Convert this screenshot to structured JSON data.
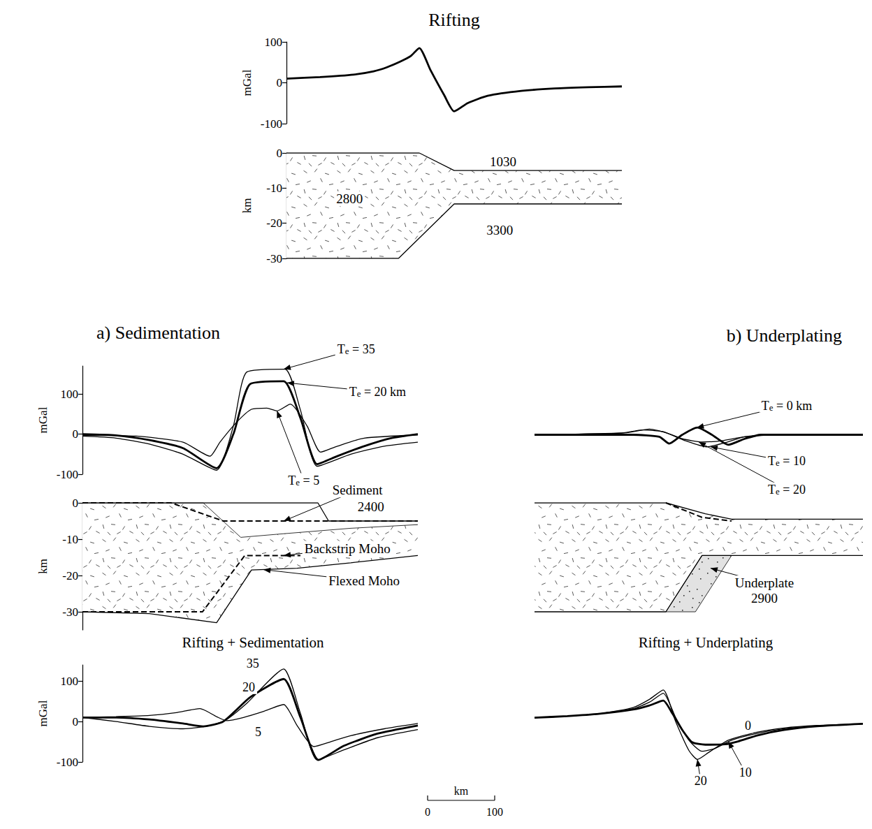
{
  "chart_data": [
    {
      "type": "line",
      "title": "Rifting",
      "y_label": "mGal",
      "color": "#000000",
      "grid": false,
      "xlim": [
        0,
        500
      ],
      "ylim": [
        -100,
        100
      ],
      "yticks": [
        -100,
        0,
        100
      ],
      "tick_labels": "y",
      "series": [
        {
          "line_style": "bold",
          "x": [
            0,
            50,
            100,
            130,
            150,
            170,
            185,
            198,
            215,
            235,
            250,
            270,
            300,
            350,
            400,
            450,
            500
          ],
          "values": [
            10,
            14,
            20,
            28,
            38,
            52,
            65,
            85,
            30,
            -30,
            -70,
            -50,
            -32,
            -20,
            -14,
            -11,
            -9
          ]
        }
      ]
    },
    {
      "type": "section",
      "y_label": "km",
      "color": "#000000",
      "grid": false,
      "xlim": [
        0,
        500
      ],
      "ylim": [
        -30,
        0
      ],
      "yticks": [
        0,
        -10,
        -20,
        -30
      ],
      "tick_labels": "y",
      "layers": [
        {
          "fill": "crust",
          "top": {
            "x": [
              0,
              198,
              250,
              500
            ],
            "values": [
              0,
              0,
              -5,
              -5
            ],
            "line_style": "solid"
          },
          "base": {
            "x": [
              0,
              167,
              250,
              500
            ],
            "values": [
              -30,
              -30,
              -14.5,
              -14.5
            ],
            "line_style": "solid"
          }
        }
      ],
      "lines": [],
      "labels": [
        {
          "text": "2800",
          "x": 94,
          "y": -13
        },
        {
          "text": "1030",
          "x": 323,
          "y": -2.5
        },
        {
          "text": "3300",
          "x": 318,
          "y": -22
        }
      ]
    },
    {
      "type": "line",
      "title": "a) Sedimentation",
      "y_label": "mGal",
      "color": "#000000",
      "grid": false,
      "xlim": [
        0,
        500
      ],
      "ylim": [
        -100,
        170
      ],
      "yticks": [
        -100,
        0,
        100
      ],
      "tick_labels": "y",
      "series": [
        {
          "name": "Te = 35",
          "line_style": "solid",
          "label_at": [
            408,
            212
          ],
          "arrow_to": [
            300,
            162
          ],
          "x": [
            0,
            50,
            100,
            150,
            200,
            225,
            245,
            302,
            325,
            350,
            400,
            450,
            500
          ],
          "values": [
            -5,
            -10,
            -25,
            -50,
            -90,
            20,
            155,
            162,
            60,
            -80,
            -50,
            -30,
            -20
          ]
        },
        {
          "name": "Te = 20 km",
          "line_style": "bold",
          "label_at": [
            440,
            105
          ],
          "arrow_to": [
            305,
            128
          ],
          "x": [
            0,
            50,
            100,
            150,
            200,
            225,
            250,
            300,
            325,
            350,
            380,
            420,
            460,
            500
          ],
          "values": [
            0,
            -3,
            -15,
            -35,
            -85,
            0,
            125,
            132,
            40,
            -75,
            -55,
            -30,
            -10,
            0
          ]
        },
        {
          "name": "Te = 5",
          "line_style": "solid",
          "label_at": [
            330,
            -115
          ],
          "arrow_to": [
            290,
            58
          ],
          "x": [
            0,
            80,
            150,
            190,
            205,
            230,
            252,
            275,
            290,
            310,
            335,
            355,
            380,
            420,
            500
          ],
          "values": [
            -3,
            -5,
            -20,
            -55,
            -20,
            30,
            62,
            65,
            58,
            75,
            20,
            -45,
            -30,
            -10,
            -2
          ]
        }
      ]
    },
    {
      "type": "section",
      "y_label": "km",
      "color": "#000000",
      "grid": false,
      "xlim": [
        0,
        500
      ],
      "ylim": [
        -35,
        0
      ],
      "yticks": [
        0,
        -10,
        -20,
        -30
      ],
      "tick_labels": "y",
      "layers": [
        {
          "fill": "crust",
          "top": {
            "x": [
              0,
              180,
              236,
              300,
              400,
              500
            ],
            "values": [
              0,
              0,
              -9.5,
              -8.5,
              -7,
              -6
            ],
            "line_style": "thin"
          },
          "base": {
            "x": [
              0,
              100,
              200,
              252,
              320,
              400,
              500
            ],
            "values": [
              -30,
              -30.5,
              -33,
              -18.5,
              -18,
              -16.5,
              -14.5
            ],
            "line_style": "solid"
          }
        }
      ],
      "lines": [
        {
          "x": [
            0,
            351,
            367,
            500
          ],
          "values": [
            0,
            0,
            -5,
            -5
          ],
          "line_style": "solid"
        },
        {
          "x": [
            0,
            132,
            210,
            500
          ],
          "values": [
            0,
            0,
            -5,
            -5
          ],
          "line_style": "dashed"
        },
        {
          "x": [
            0,
            179,
            242,
            325
          ],
          "values": [
            -30,
            -30,
            -14.5,
            -14.5
          ],
          "line_style": "dashed"
        }
      ],
      "labels": [
        {
          "text": "Sediment",
          "x": 410,
          "y": 3.5,
          "arrow_to": [
            300,
            -5
          ]
        },
        {
          "text": "2400",
          "x": 430,
          "y": -1
        },
        {
          "text": "Backstrip Moho",
          "x": 395,
          "y": -12.5,
          "arrow_to": [
            300,
            -14.5
          ]
        },
        {
          "text": "Flexed Moho",
          "x": 420,
          "y": -21.5,
          "arrow_to": [
            270,
            -18.4
          ]
        }
      ]
    },
    {
      "type": "line",
      "title": "Rifting + Sedimentation",
      "y_label": "mGal",
      "color": "#000000",
      "grid": false,
      "xlim": [
        0,
        500
      ],
      "ylim": [
        -100,
        140
      ],
      "yticks": [
        -100,
        0,
        100
      ],
      "tick_labels": "y",
      "series": [
        {
          "name": "35",
          "line_style": "solid",
          "label_at": [
            254,
            143
          ],
          "x": [
            0,
            50,
            100,
            150,
            190,
            215,
            245,
            300,
            325,
            350,
            390,
            440,
            500
          ],
          "values": [
            10,
            0,
            -12,
            -18,
            -10,
            5,
            45,
            130,
            20,
            -95,
            -70,
            -40,
            -20
          ]
        },
        {
          "name": "20",
          "line_style": "bold",
          "label_at": [
            248,
            85
          ],
          "x": [
            0,
            50,
            100,
            150,
            180,
            210,
            250,
            300,
            325,
            352,
            390,
            440,
            500
          ],
          "values": [
            10,
            10,
            5,
            -5,
            -12,
            0,
            60,
            105,
            10,
            -95,
            -60,
            -30,
            -10
          ]
        },
        {
          "name": "5",
          "line_style": "solid",
          "label_at": [
            262,
            -25
          ],
          "x": [
            0,
            50,
            100,
            140,
            175,
            200,
            215,
            240,
            270,
            300,
            320,
            345,
            370,
            400,
            450,
            500
          ],
          "values": [
            10,
            12,
            15,
            22,
            32,
            12,
            2,
            10,
            25,
            42,
            -10,
            -62,
            -50,
            -35,
            -18,
            -5
          ]
        }
      ]
    },
    {
      "type": "line",
      "title": "b) Underplating",
      "color": "#000000",
      "grid": false,
      "xlim": [
        0,
        500
      ],
      "ylim": [
        -100,
        100
      ],
      "tick_labels": false,
      "series": [
        {
          "name": "Te = 0 km",
          "line_style": "bold",
          "label_at": [
            384,
            73
          ],
          "arrow_to": [
            247,
            18
          ],
          "x": [
            0,
            150,
            190,
            205,
            225,
            248,
            270,
            295,
            320,
            345,
            500
          ],
          "values": [
            0,
            0,
            -5,
            -22,
            0,
            18,
            0,
            -25,
            -10,
            0,
            0
          ]
        },
        {
          "name": "Te = 10",
          "line_style": "solid",
          "label_at": [
            384,
            -66
          ],
          "arrow_to": [
            268,
            -30
          ],
          "x": [
            0,
            140,
            175,
            200,
            230,
            262,
            290,
            320,
            360,
            500
          ],
          "values": [
            0,
            5,
            14,
            5,
            -15,
            -30,
            -20,
            -5,
            0,
            0
          ]
        },
        {
          "name": "Te = 20",
          "line_style": "solid",
          "label_at": [
            384,
            -136
          ],
          "arrow_to": [
            250,
            -18
          ],
          "x": [
            0,
            130,
            165,
            195,
            225,
            255,
            285,
            320,
            370,
            500
          ],
          "values": [
            0,
            4,
            12,
            8,
            -10,
            -18,
            -15,
            -5,
            0,
            0
          ]
        }
      ]
    },
    {
      "type": "section",
      "color": "#000000",
      "grid": false,
      "xlim": [
        0,
        500
      ],
      "ylim": [
        -35,
        0
      ],
      "tick_labels": false,
      "layers": [
        {
          "fill": "crust",
          "top": {
            "x": [
              0,
              200,
              260,
              300,
              500
            ],
            "values": [
              0,
              0,
              -3,
              -4.5,
              -4.5
            ],
            "line_style": "solid"
          },
          "base": {
            "x": [
              0,
              200,
              255,
              500
            ],
            "values": [
              -30,
              -30,
              -14.5,
              -14.5
            ],
            "line_style": "solid"
          }
        },
        {
          "fill": "underplate",
          "outline": {
            "x": [
              200,
              255,
              300,
              245
            ],
            "values": [
              -30,
              -14.5,
              -14.5,
              -30
            ],
            "line_style": "thin"
          }
        }
      ],
      "lines": [
        {
          "x": [
            200,
            255,
            300
          ],
          "values": [
            0,
            -4,
            -5
          ],
          "line_style": "dashed"
        }
      ],
      "labels": [
        {
          "text": "Underplate",
          "x": 350,
          "y": -22,
          "arrow_to": [
            268,
            -18
          ]
        },
        {
          "text": "2900",
          "x": 350,
          "y": -26.3
        }
      ]
    },
    {
      "type": "line",
      "title": "Rifting + Underplating",
      "color": "#000000",
      "grid": false,
      "xlim": [
        0,
        500
      ],
      "ylim": [
        -100,
        100
      ],
      "tick_labels": false,
      "series": [
        {
          "name": "0",
          "line_style": "bold",
          "label_at": [
            325,
            -10
          ],
          "x": [
            0,
            50,
            100,
            150,
            175,
            196,
            210,
            225,
            240,
            260,
            290,
            310,
            340,
            380,
            430,
            500
          ],
          "values": [
            10,
            14,
            20,
            30,
            40,
            52,
            20,
            -20,
            -50,
            -56,
            -55,
            -48,
            -33,
            -20,
            -11,
            -5
          ]
        },
        {
          "name": "10",
          "line_style": "solid",
          "label_at": [
            321,
            -124
          ],
          "arrow_to": [
            295,
            -48
          ],
          "x": [
            0,
            50,
            100,
            150,
            175,
            196,
            215,
            235,
            255,
            275,
            300,
            340,
            380,
            430,
            500
          ],
          "values": [
            10,
            14,
            20,
            32,
            48,
            70,
            10,
            -45,
            -72,
            -65,
            -45,
            -28,
            -17,
            -10,
            -5
          ]
        },
        {
          "name": "20",
          "line_style": "solid",
          "label_at": [
            253,
            -145
          ],
          "arrow_to": [
            248,
            -92
          ],
          "x": [
            0,
            50,
            100,
            150,
            175,
            196,
            215,
            235,
            248,
            265,
            295,
            340,
            380,
            430,
            500
          ],
          "values": [
            10,
            14,
            20,
            35,
            55,
            78,
            0,
            -70,
            -92,
            -75,
            -45,
            -25,
            -15,
            -9,
            -5
          ]
        }
      ]
    }
  ],
  "scale_bar": {
    "label": "km",
    "ticks": [
      0,
      100
    ]
  }
}
